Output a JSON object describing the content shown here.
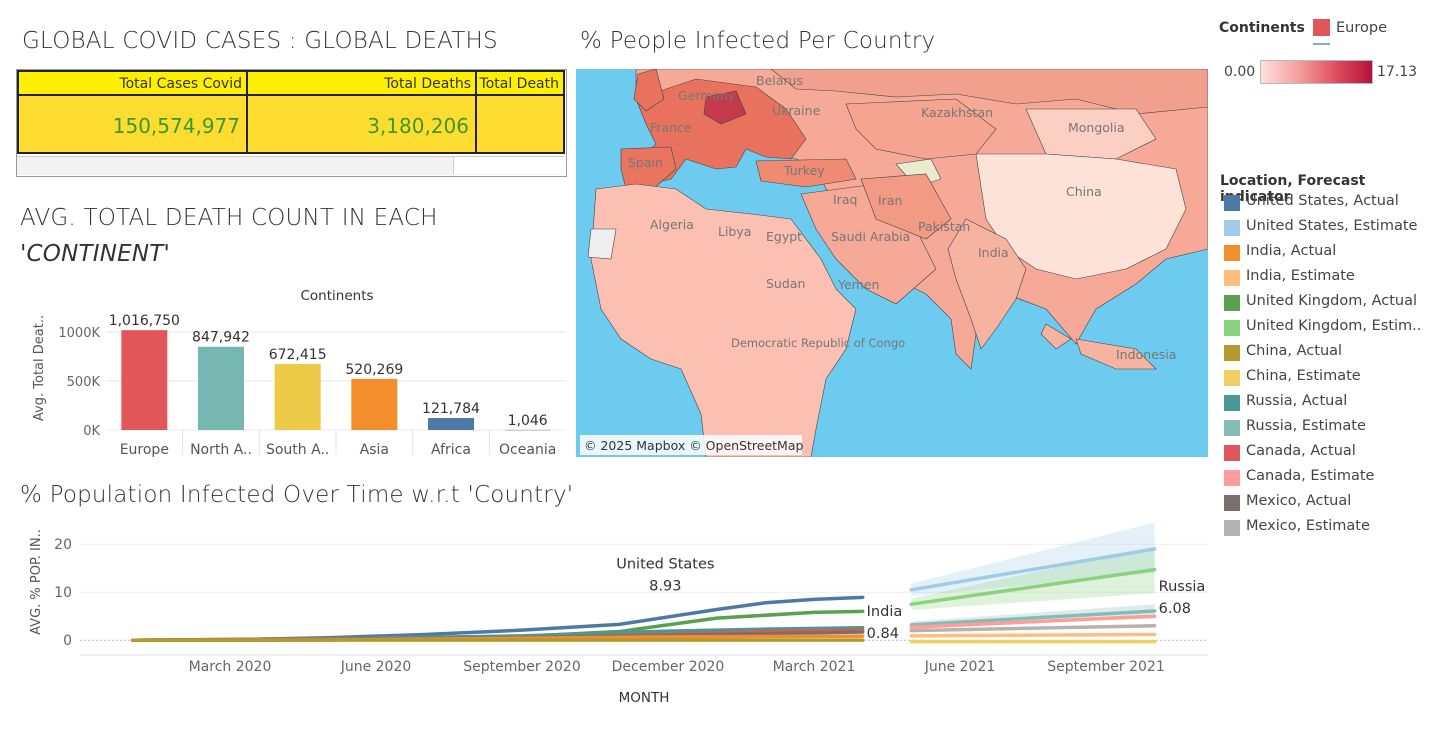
{
  "titles": {
    "global": "GLOBAL COVID CASES : GLOBAL DEATHS",
    "map": "% People Infected Per Country",
    "continent_line1": "AVG. TOTAL DEATH COUNT IN EACH",
    "continent_line2": "'CONTINENT'",
    "timeline": "% Population Infected Over Time w.r.t 'Country'"
  },
  "kpi": {
    "headers": [
      "Total Cases Covid",
      "Total Deaths",
      "Total Death"
    ],
    "values": [
      "150,574,977",
      "3,180,206",
      ""
    ]
  },
  "continent_legend": {
    "label": "Continents",
    "item": "Europe",
    "color": "#e15759",
    "scale_min": "0.00",
    "scale_max": "17.13"
  },
  "map": {
    "attribution": "© 2025 Mapbox © OpenStreetMap",
    "labels": [
      "Belarus",
      "Germany",
      "Ukraine",
      "France",
      "Spain",
      "Turkey",
      "Kazakhstan",
      "Mongolia",
      "China",
      "Algeria",
      "Libya",
      "Egypt",
      "Iraq",
      "Iran",
      "Pakistan",
      "India",
      "Saudi Arabia",
      "Sudan",
      "Yemen",
      "Democratic Republic of Congo",
      "Indonesia"
    ]
  },
  "forecast_legend": {
    "title": "Location, Forecast indicator",
    "items": [
      {
        "label": "United States, Actual",
        "color": "#4e79a7"
      },
      {
        "label": "United States, Estimate",
        "color": "#a0cbe8"
      },
      {
        "label": "India, Actual",
        "color": "#f28e2b"
      },
      {
        "label": "India, Estimate",
        "color": "#ffbe7d"
      },
      {
        "label": "United Kingdom, Actual",
        "color": "#59a14f"
      },
      {
        "label": "United Kingdom, Estim..",
        "color": "#8cd17d"
      },
      {
        "label": "China, Actual",
        "color": "#b6992d"
      },
      {
        "label": "China, Estimate",
        "color": "#f1ce63"
      },
      {
        "label": "Russia, Actual",
        "color": "#499894"
      },
      {
        "label": "Russia, Estimate",
        "color": "#86bcb6"
      },
      {
        "label": "Canada, Actual",
        "color": "#e15759"
      },
      {
        "label": "Canada, Estimate",
        "color": "#ff9d9a"
      },
      {
        "label": "Mexico, Actual",
        "color": "#79706e"
      },
      {
        "label": "Mexico, Estimate",
        "color": "#bab0ac"
      }
    ]
  },
  "chart_data": [
    {
      "type": "bar",
      "title": "Continents",
      "ylabel": "Avg. Total Deat..",
      "categories": [
        "Europe",
        "North A..",
        "South A..",
        "Asia",
        "Africa",
        "Oceania"
      ],
      "values": [
        1016750,
        847942,
        672415,
        520269,
        121784,
        1046
      ],
      "data_labels": [
        "1,016,750",
        "847,942",
        "672,415",
        "520,269",
        "121,784",
        "1,046"
      ],
      "colors": [
        "#e15759",
        "#76b7b2",
        "#edc948",
        "#f28e2b",
        "#4e79a7",
        "#b07aa1"
      ],
      "yticks": [
        {
          "v": 0,
          "label": "0K"
        },
        {
          "v": 500000,
          "label": "500K"
        },
        {
          "v": 1000000,
          "label": "1000K"
        }
      ],
      "ylim": [
        0,
        1100000
      ]
    },
    {
      "type": "line",
      "xlabel": "MONTH",
      "ylabel": "AVG. % POP. IN..",
      "ylim": [
        -1,
        24
      ],
      "yticks": [
        0,
        10,
        20
      ],
      "xticks": [
        {
          "label": "March 2020",
          "date": "2020-03-01"
        },
        {
          "label": "June 2020",
          "date": "2020-06-01"
        },
        {
          "label": "September 2020",
          "date": "2020-09-01"
        },
        {
          "label": "December 2020",
          "date": "2020-12-01"
        },
        {
          "label": "March 2021",
          "date": "2021-03-01"
        },
        {
          "label": "June 2021",
          "date": "2021-06-01"
        },
        {
          "label": "September 2021",
          "date": "2021-09-01"
        }
      ],
      "series": [
        {
          "name": "United States, Actual",
          "color": "#4e79a7",
          "x": [
            "2020-01",
            "2020-03",
            "2020-05",
            "2020-07",
            "2020-09",
            "2020-11",
            "2021-01",
            "2021-02",
            "2021-03",
            "2021-04"
          ],
          "y": [
            0,
            0.1,
            0.5,
            1.2,
            2.1,
            3.3,
            6.4,
            7.8,
            8.5,
            8.93
          ]
        },
        {
          "name": "United States, Estimate",
          "color": "#a0cbe8",
          "x": [
            "2021-05",
            "2021-10"
          ],
          "y": [
            10.5,
            19.0
          ],
          "band": [
            [
              9.2,
              11.8
            ],
            [
              14.0,
              24.5
            ]
          ]
        },
        {
          "name": "United Kingdom, Actual",
          "color": "#59a14f",
          "x": [
            "2020-01",
            "2020-05",
            "2020-09",
            "2020-11",
            "2021-01",
            "2021-03",
            "2021-04"
          ],
          "y": [
            0,
            0.3,
            0.8,
            1.8,
            4.6,
            5.8,
            6.0
          ]
        },
        {
          "name": "United Kingdom, Estimate",
          "color": "#8cd17d",
          "x": [
            "2021-05",
            "2021-10"
          ],
          "y": [
            7.5,
            14.7
          ],
          "band": [
            [
              6.3,
              8.7
            ],
            [
              9.8,
              19.5
            ]
          ]
        },
        {
          "name": "Russia, Actual",
          "color": "#499894",
          "x": [
            "2020-01",
            "2020-05",
            "2020-09",
            "2020-12",
            "2021-02",
            "2021-04"
          ],
          "y": [
            0,
            0.3,
            0.9,
            1.9,
            2.3,
            2.6
          ]
        },
        {
          "name": "Russia, Estimate",
          "color": "#86bcb6",
          "x": [
            "2021-05",
            "2021-10"
          ],
          "y": [
            3.2,
            6.08
          ],
          "band": [
            [
              2.6,
              3.9
            ],
            [
              4.5,
              7.5
            ]
          ]
        },
        {
          "name": "Canada, Actual",
          "color": "#e15759",
          "x": [
            "2020-01",
            "2020-05",
            "2020-09",
            "2020-12",
            "2021-02",
            "2021-04"
          ],
          "y": [
            0,
            0.2,
            0.4,
            1.2,
            1.8,
            2.1
          ]
        },
        {
          "name": "Canada, Estimate",
          "color": "#ff9d9a",
          "x": [
            "2021-05",
            "2021-10"
          ],
          "y": [
            2.7,
            5.0
          ]
        },
        {
          "name": "Mexico, Actual",
          "color": "#79706e",
          "x": [
            "2020-01",
            "2020-05",
            "2020-09",
            "2020-12",
            "2021-02",
            "2021-04"
          ],
          "y": [
            0,
            0.1,
            0.5,
            1.0,
            1.4,
            1.7
          ]
        },
        {
          "name": "Mexico, Estimate",
          "color": "#bab0ac",
          "x": [
            "2021-05",
            "2021-10"
          ],
          "y": [
            2.0,
            3.0
          ]
        },
        {
          "name": "India, Actual",
          "color": "#f28e2b",
          "x": [
            "2020-01",
            "2020-05",
            "2020-09",
            "2020-12",
            "2021-02",
            "2021-04"
          ],
          "y": [
            0,
            0.05,
            0.4,
            0.7,
            0.78,
            0.84
          ]
        },
        {
          "name": "India, Estimate",
          "color": "#ffbe7d",
          "x": [
            "2021-05",
            "2021-10"
          ],
          "y": [
            0.9,
            1.2
          ]
        },
        {
          "name": "China, Actual",
          "color": "#b6992d",
          "x": [
            "2020-01",
            "2020-06",
            "2021-04"
          ],
          "y": [
            0,
            0.01,
            0.01
          ]
        },
        {
          "name": "China, Estimate",
          "color": "#f1ce63",
          "x": [
            "2021-05",
            "2021-10"
          ],
          "y": [
            -0.3,
            -0.3
          ]
        }
      ],
      "annotations": [
        {
          "label": "United States",
          "value": "8.93",
          "x": "2021-02",
          "y": 8.93
        },
        {
          "label": "India",
          "value": "0.84",
          "x": "2021-04",
          "y": 0.84
        },
        {
          "label": "Russia",
          "value": "6.08",
          "x": "2021-10",
          "y": 6.08
        }
      ]
    }
  ]
}
